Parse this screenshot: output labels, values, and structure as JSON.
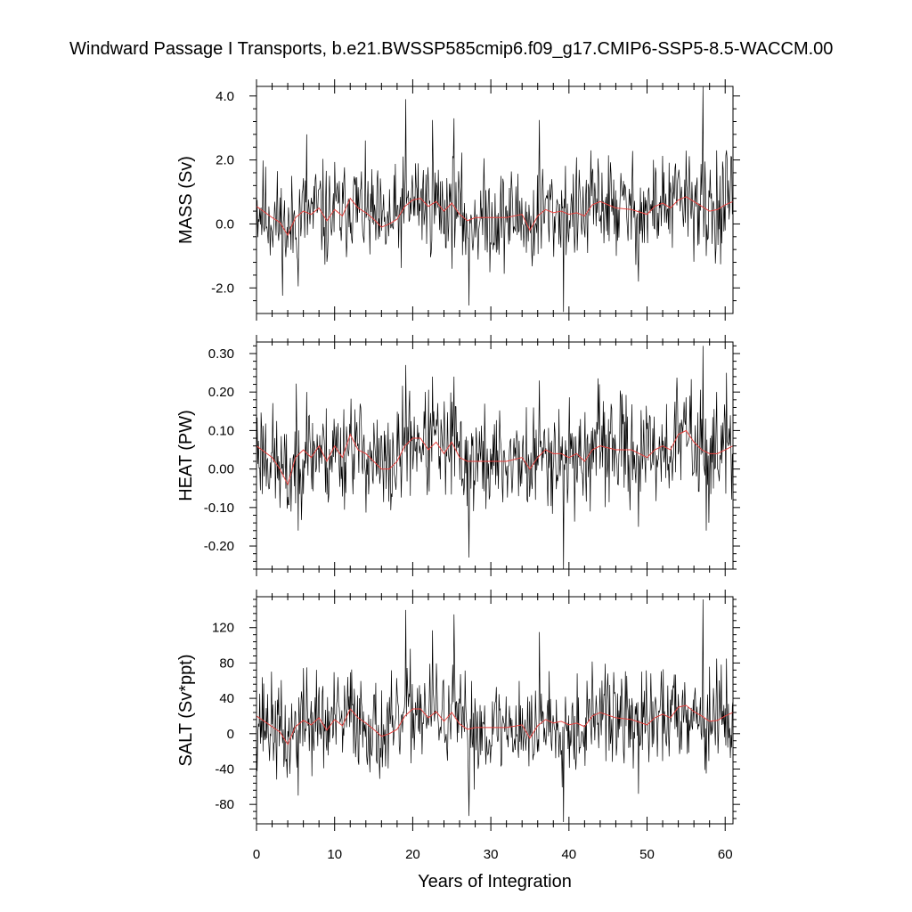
{
  "title": "Windward Passage I Transports, b.e21.BWSSP585cmip6.f09_g17.CMIP6-SSP5-8.5-WACCM.00",
  "chart_data": {
    "type": "line",
    "title": "Windward Passage I Transports, b.e21.BWSSP585cmip6.f09_g17.CMIP6-SSP5-8.5-WACCM.00",
    "xlabel": "Years of Integration",
    "xlim": [
      0,
      61
    ],
    "xticks": [
      0,
      10,
      20,
      30,
      40,
      50,
      60
    ],
    "grid": false,
    "colors": {
      "raw": "#000000",
      "smoothed": "#e8423f"
    },
    "panels": [
      {
        "ylabel": "MASS (Sv)",
        "ylim": [
          -2.8,
          4.3
        ],
        "yticks": [
          -2.0,
          0.0,
          2.0,
          4.0
        ],
        "ytick_labels": [
          "-2.0",
          "0.0",
          "2.0",
          "4.0"
        ],
        "smoothed_x": [
          0,
          2,
          3,
          4,
          5,
          6,
          7,
          8,
          9,
          10,
          11,
          12,
          13,
          14,
          15,
          16,
          17,
          18,
          19,
          20,
          21,
          22,
          23,
          24,
          25,
          26,
          27,
          28,
          30,
          32,
          34,
          35,
          36,
          37,
          38,
          39,
          40,
          41,
          42,
          43,
          44,
          46,
          48,
          50,
          51,
          52,
          53,
          54,
          55,
          56,
          57,
          58,
          59,
          60,
          61
        ],
        "smoothed_y": [
          0.55,
          0.2,
          0.05,
          -0.35,
          0.2,
          0.4,
          0.3,
          0.5,
          0.1,
          0.45,
          0.25,
          0.8,
          0.5,
          0.35,
          0.15,
          -0.1,
          0.0,
          0.15,
          0.55,
          0.75,
          0.8,
          0.55,
          0.7,
          0.4,
          0.65,
          0.3,
          0.1,
          0.2,
          0.2,
          0.2,
          0.3,
          -0.2,
          0.25,
          0.45,
          0.35,
          0.4,
          0.3,
          0.35,
          0.25,
          0.6,
          0.7,
          0.5,
          0.45,
          0.3,
          0.55,
          0.65,
          0.5,
          0.75,
          0.85,
          0.7,
          0.55,
          0.4,
          0.45,
          0.6,
          0.7
        ],
        "spikes": [
          [
            5.3,
            -1.95
          ],
          [
            6.4,
            2.8
          ],
          [
            19.1,
            3.9
          ],
          [
            22.5,
            3.25
          ],
          [
            25.3,
            3.3
          ],
          [
            27.2,
            -2.55
          ],
          [
            36.2,
            3.25
          ],
          [
            39.3,
            -2.75
          ],
          [
            48.9,
            -1.8
          ],
          [
            57.2,
            4.3
          ],
          [
            57.6,
            -1.0
          ],
          [
            58.9,
            2.3
          ],
          [
            60.2,
            2.3
          ]
        ],
        "noise": {
          "seed": 11,
          "amplitude": 0.75,
          "samples": 732
        }
      },
      {
        "ylabel": "HEAT (PW)",
        "ylim": [
          -0.26,
          0.33
        ],
        "yticks": [
          -0.2,
          -0.1,
          0.0,
          0.1,
          0.2,
          0.3
        ],
        "ytick_labels": [
          "-0.20",
          "-0.10",
          "0.00",
          "0.10",
          "0.20",
          "0.30"
        ],
        "smoothed_x": [
          0,
          2,
          3,
          4,
          5,
          6,
          7,
          8,
          9,
          10,
          11,
          12,
          13,
          14,
          15,
          16,
          17,
          18,
          19,
          20,
          21,
          22,
          23,
          24,
          25,
          26,
          27,
          28,
          30,
          32,
          34,
          35,
          36,
          37,
          38,
          39,
          40,
          41,
          42,
          43,
          44,
          46,
          48,
          50,
          51,
          52,
          53,
          54,
          55,
          56,
          57,
          58,
          59,
          60,
          61
        ],
        "smoothed_y": [
          0.06,
          0.03,
          0.0,
          -0.04,
          0.03,
          0.05,
          0.03,
          0.06,
          0.02,
          0.06,
          0.03,
          0.09,
          0.05,
          0.04,
          0.02,
          0.0,
          0.0,
          0.02,
          0.06,
          0.08,
          0.08,
          0.05,
          0.07,
          0.04,
          0.07,
          0.03,
          0.02,
          0.02,
          0.02,
          0.02,
          0.03,
          0.0,
          0.03,
          0.05,
          0.04,
          0.04,
          0.03,
          0.04,
          0.02,
          0.05,
          0.06,
          0.05,
          0.05,
          0.03,
          0.05,
          0.06,
          0.05,
          0.09,
          0.1,
          0.07,
          0.05,
          0.04,
          0.04,
          0.05,
          0.06
        ],
        "spikes": [
          [
            5.3,
            -0.16
          ],
          [
            6.4,
            0.2
          ],
          [
            19.1,
            0.27
          ],
          [
            22.5,
            0.24
          ],
          [
            25.3,
            0.24
          ],
          [
            27.2,
            -0.23
          ],
          [
            36.2,
            0.23
          ],
          [
            39.3,
            -0.26
          ],
          [
            48.9,
            -0.15
          ],
          [
            57.2,
            0.32
          ],
          [
            57.6,
            -0.16
          ],
          [
            58.9,
            0.2
          ],
          [
            60.2,
            0.25
          ]
        ],
        "noise": {
          "seed": 23,
          "amplitude": 0.065,
          "samples": 732
        }
      },
      {
        "ylabel": "SALT (Sv*ppt)",
        "ylim": [
          -102,
          155
        ],
        "yticks": [
          -80,
          -40,
          0,
          40,
          80,
          120
        ],
        "ytick_labels": [
          "-80",
          "-40",
          "0",
          "40",
          "80",
          "120"
        ],
        "smoothed_x": [
          0,
          2,
          3,
          4,
          5,
          6,
          7,
          8,
          9,
          10,
          11,
          12,
          13,
          14,
          15,
          16,
          17,
          18,
          19,
          20,
          21,
          22,
          23,
          24,
          25,
          26,
          27,
          28,
          30,
          32,
          34,
          35,
          36,
          37,
          38,
          39,
          40,
          41,
          42,
          43,
          44,
          46,
          48,
          50,
          51,
          52,
          53,
          54,
          55,
          56,
          57,
          58,
          59,
          60,
          61
        ],
        "smoothed_y": [
          20,
          8,
          2,
          -12,
          8,
          15,
          10,
          18,
          4,
          16,
          9,
          28,
          18,
          12,
          5,
          -3,
          0,
          5,
          20,
          28,
          28,
          18,
          25,
          14,
          24,
          11,
          5,
          7,
          7,
          7,
          10,
          -5,
          9,
          16,
          12,
          14,
          10,
          12,
          8,
          20,
          24,
          18,
          16,
          10,
          18,
          22,
          18,
          30,
          32,
          25,
          20,
          14,
          15,
          20,
          24
        ],
        "spikes": [
          [
            5.3,
            -70
          ],
          [
            6.4,
            75
          ],
          [
            19.1,
            140
          ],
          [
            22.5,
            117
          ],
          [
            25.3,
            135
          ],
          [
            27.2,
            -93
          ],
          [
            36.2,
            115
          ],
          [
            39.3,
            -100
          ],
          [
            48.9,
            -68
          ],
          [
            57.2,
            152
          ],
          [
            57.6,
            -45
          ],
          [
            58.9,
            85
          ],
          [
            60.2,
            85
          ]
        ],
        "noise": {
          "seed": 37,
          "amplitude": 26,
          "samples": 732
        }
      }
    ]
  }
}
